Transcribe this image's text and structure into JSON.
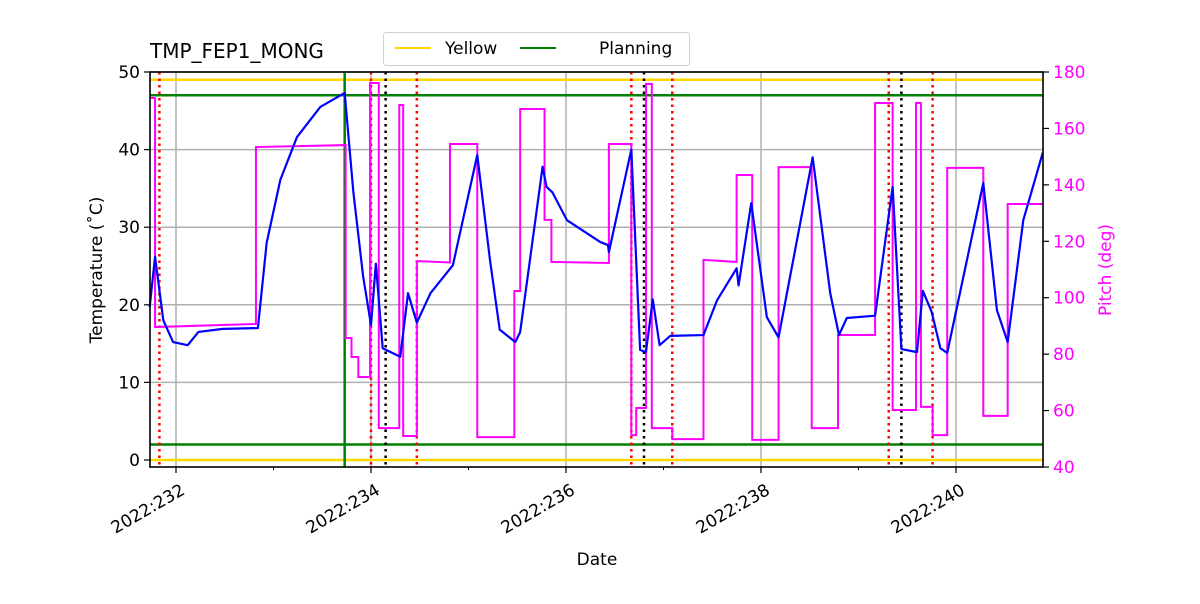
{
  "chart_data": {
    "type": "line",
    "title": "TMP_FEP1_MONG",
    "xlabel": "Date",
    "ylabel": "Temperature ($^\\circ$C)",
    "ylabel_display": "Temperature (˚C)",
    "y2label": "Pitch (deg)",
    "xlim": [
      231.73,
      240.89
    ],
    "ylim": [
      -1,
      50
    ],
    "y2lim": [
      40,
      180
    ],
    "x_ticks": [
      232,
      234,
      236,
      238,
      240
    ],
    "x_tick_labels": [
      "2022:232",
      "2022:234",
      "2022:236",
      "2022:238",
      "2022:240"
    ],
    "x_minor_ticks": [
      233,
      235,
      237,
      239
    ],
    "y_ticks": [
      0,
      10,
      20,
      30,
      40,
      50
    ],
    "y_tick_labels": [
      "0",
      "10",
      "20",
      "30",
      "40",
      "50"
    ],
    "y2_ticks": [
      40,
      60,
      80,
      100,
      120,
      140,
      160,
      180
    ],
    "y2_tick_labels": [
      "40",
      "60",
      "80",
      "100",
      "120",
      "140",
      "160",
      "180"
    ],
    "grid": true,
    "legend": {
      "placement": "top-center",
      "entries": [
        {
          "label": "Yellow",
          "color": "#ffd700"
        },
        {
          "label": "Planning",
          "color": "#008000"
        }
      ]
    },
    "limits": [
      {
        "group": "Yellow",
        "value": 49,
        "color": "#ffd700"
      },
      {
        "group": "Yellow",
        "value": 0,
        "color": "#ffd700"
      },
      {
        "group": "Planning",
        "value": 47,
        "color": "#008000"
      },
      {
        "group": "Planning",
        "value": 2,
        "color": "#008000"
      }
    ],
    "vlines": {
      "green_solid": [
        233.73
      ],
      "red_dotted": [
        231.83,
        234.0,
        234.47,
        236.67,
        237.09,
        239.31,
        239.76
      ],
      "black_dotted": [
        234.15,
        236.8,
        239.44
      ]
    },
    "colors": {
      "temperature": "#0000ff",
      "pitch": "#ff00ff",
      "pitch_axis": "#ff00ff",
      "grid": "#b0b0b0"
    },
    "temperature": [
      [
        231.73,
        19.7
      ],
      [
        231.785,
        26.2
      ],
      [
        231.87,
        18.0
      ],
      [
        231.97,
        15.2
      ],
      [
        232.12,
        14.8
      ],
      [
        232.23,
        16.5
      ],
      [
        232.48,
        16.9
      ],
      [
        232.84,
        17.0
      ],
      [
        232.93,
        28.0
      ],
      [
        233.07,
        36.1
      ],
      [
        233.24,
        41.6
      ],
      [
        233.48,
        45.5
      ],
      [
        233.73,
        47.3
      ],
      [
        233.82,
        34.4
      ],
      [
        233.92,
        23.6
      ],
      [
        234.0,
        17.4
      ],
      [
        234.05,
        25.3
      ],
      [
        234.12,
        14.4
      ],
      [
        234.3,
        13.3
      ],
      [
        234.38,
        21.5
      ],
      [
        234.47,
        17.7
      ],
      [
        234.61,
        21.5
      ],
      [
        234.84,
        25.1
      ],
      [
        235.09,
        39.3
      ],
      [
        235.22,
        25.8
      ],
      [
        235.32,
        16.8
      ],
      [
        235.48,
        15.2
      ],
      [
        235.53,
        16.5
      ],
      [
        235.76,
        37.8
      ],
      [
        235.8,
        35.2
      ],
      [
        235.86,
        34.5
      ],
      [
        236.01,
        30.9
      ],
      [
        236.35,
        28.1
      ],
      [
        236.43,
        27.7
      ],
      [
        236.44,
        26.8
      ],
      [
        236.67,
        40.0
      ],
      [
        236.76,
        14.2
      ],
      [
        236.82,
        13.9
      ],
      [
        236.89,
        20.7
      ],
      [
        236.96,
        14.8
      ],
      [
        237.07,
        16.0
      ],
      [
        237.41,
        16.1
      ],
      [
        237.55,
        20.6
      ],
      [
        237.75,
        24.7
      ],
      [
        237.77,
        22.5
      ],
      [
        237.9,
        33.1
      ],
      [
        238.06,
        18.4
      ],
      [
        238.18,
        15.8
      ],
      [
        238.53,
        39.0
      ],
      [
        238.71,
        21.5
      ],
      [
        238.8,
        16.1
      ],
      [
        238.88,
        18.3
      ],
      [
        239.17,
        18.6
      ],
      [
        239.35,
        35.2
      ],
      [
        239.44,
        14.3
      ],
      [
        239.6,
        13.9
      ],
      [
        239.66,
        21.8
      ],
      [
        239.75,
        19.1
      ],
      [
        239.84,
        14.4
      ],
      [
        239.91,
        13.8
      ],
      [
        240.28,
        35.7
      ],
      [
        240.42,
        19.3
      ],
      [
        240.53,
        15.2
      ],
      [
        240.69,
        30.9
      ],
      [
        240.89,
        39.6
      ]
    ],
    "pitch": [
      [
        231.73,
        170.8
      ],
      [
        231.785,
        170.8
      ],
      [
        231.785,
        89.6
      ],
      [
        232.82,
        90.7
      ],
      [
        232.82,
        153.4
      ],
      [
        233.74,
        154.1
      ],
      [
        233.74,
        85.7
      ],
      [
        233.8,
        85.7
      ],
      [
        233.8,
        79.0
      ],
      [
        233.87,
        79.0
      ],
      [
        233.87,
        71.9
      ],
      [
        233.99,
        71.9
      ],
      [
        233.99,
        176.1
      ],
      [
        234.08,
        176.1
      ],
      [
        234.08,
        53.8
      ],
      [
        234.29,
        53.8
      ],
      [
        234.29,
        168.3
      ],
      [
        234.33,
        168.3
      ],
      [
        234.33,
        51.0
      ],
      [
        234.47,
        51.0
      ],
      [
        234.47,
        113.0
      ],
      [
        234.81,
        112.5
      ],
      [
        234.81,
        154.5
      ],
      [
        235.09,
        154.5
      ],
      [
        235.09,
        50.6
      ],
      [
        235.47,
        50.6
      ],
      [
        235.47,
        102.4
      ],
      [
        235.53,
        102.4
      ],
      [
        235.53,
        166.9
      ],
      [
        235.78,
        166.9
      ],
      [
        235.78,
        127.6
      ],
      [
        235.85,
        127.6
      ],
      [
        235.85,
        112.7
      ],
      [
        236.44,
        112.3
      ],
      [
        236.44,
        154.5
      ],
      [
        236.67,
        154.5
      ],
      [
        236.67,
        51.3
      ],
      [
        236.72,
        51.3
      ],
      [
        236.72,
        60.9
      ],
      [
        236.82,
        60.9
      ],
      [
        236.82,
        175.8
      ],
      [
        236.88,
        175.8
      ],
      [
        236.88,
        53.8
      ],
      [
        237.09,
        53.8
      ],
      [
        237.09,
        49.9
      ],
      [
        237.41,
        49.9
      ],
      [
        237.41,
        113.4
      ],
      [
        237.75,
        112.7
      ],
      [
        237.75,
        143.5
      ],
      [
        237.91,
        143.5
      ],
      [
        237.91,
        49.6
      ],
      [
        238.18,
        49.6
      ],
      [
        238.18,
        146.3
      ],
      [
        238.52,
        146.3
      ],
      [
        238.52,
        53.8
      ],
      [
        238.79,
        53.8
      ],
      [
        238.79,
        86.8
      ],
      [
        239.17,
        86.8
      ],
      [
        239.17,
        169.0
      ],
      [
        239.35,
        169.0
      ],
      [
        239.35,
        60.2
      ],
      [
        239.59,
        60.2
      ],
      [
        239.59,
        169.0
      ],
      [
        239.64,
        169.0
      ],
      [
        239.64,
        61.3
      ],
      [
        239.76,
        61.3
      ],
      [
        239.76,
        51.3
      ],
      [
        239.91,
        51.3
      ],
      [
        239.91,
        146.0
      ],
      [
        240.28,
        146.0
      ],
      [
        240.28,
        58.1
      ],
      [
        240.53,
        58.1
      ],
      [
        240.53,
        133.2
      ],
      [
        240.89,
        133.2
      ]
    ]
  }
}
